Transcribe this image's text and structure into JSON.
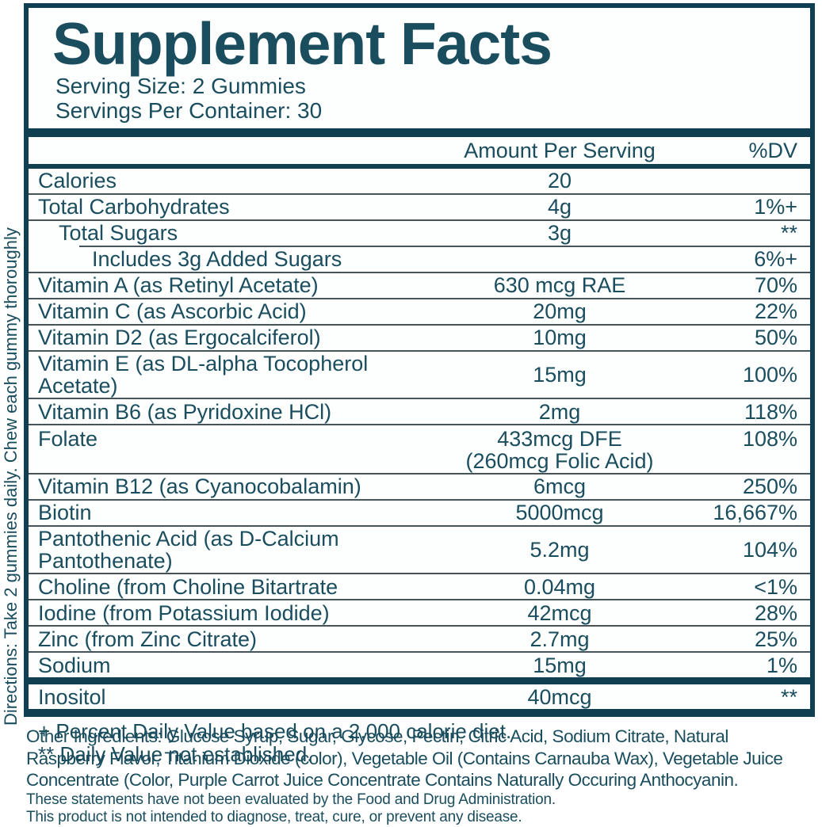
{
  "colors": {
    "text_teal": "#1A4D5E",
    "bar_teal": "#0F3F50",
    "separator_gray": "#46545A",
    "background": "#FFFFFF"
  },
  "directions_sidebar": "Directions: Take 2 gummies daily. Chew each gummy thoroughly",
  "header": {
    "title": "Supplement Facts",
    "serving_size": "Serving Size: 2 Gummies",
    "servings_per_container": "Servings Per Container: 30"
  },
  "table": {
    "amount_header": "Amount Per Serving",
    "dv_header": "%DV",
    "rows": [
      {
        "name": "Calories",
        "amount": "20",
        "amount2": "",
        "dv": "",
        "indent": 0,
        "divider": "none"
      },
      {
        "name": "Total Carbohydrates",
        "amount": "4g",
        "amount2": "",
        "dv": "1%+",
        "indent": 0,
        "divider": "full"
      },
      {
        "name": "Total Sugars",
        "amount": "3g",
        "amount2": "",
        "dv": "**",
        "indent": 1,
        "divider": "full"
      },
      {
        "name": "Includes 3g Added Sugars",
        "amount": "",
        "amount2": "",
        "dv": "6%+",
        "indent": 2,
        "divider": "indent"
      },
      {
        "name": "Vitamin A (as Retinyl Acetate)",
        "amount": "630 mcg RAE",
        "amount2": "",
        "dv": "70%",
        "indent": 0,
        "divider": "full"
      },
      {
        "name": "Vitamin C (as Ascorbic Acid)",
        "amount": "20mg",
        "amount2": "",
        "dv": "22%",
        "indent": 0,
        "divider": "full"
      },
      {
        "name": "Vitamin D2 (as Ergocalciferol)",
        "amount": "10mg",
        "amount2": "",
        "dv": "50%",
        "indent": 0,
        "divider": "full"
      },
      {
        "name": "Vitamin E (as DL-alpha Tocopherol Acetate)",
        "amount": "15mg",
        "amount2": "",
        "dv": "100%",
        "indent": 0,
        "divider": "full"
      },
      {
        "name": "Vitamin B6 (as Pyridoxine HCl)",
        "amount": "2mg",
        "amount2": "",
        "dv": "118%",
        "indent": 0,
        "divider": "full"
      },
      {
        "name": "Folate",
        "amount": "433mcg DFE",
        "amount2": "(260mcg Folic Acid)",
        "dv": "108%",
        "indent": 0,
        "divider": "full"
      },
      {
        "name": "Vitamin B12 (as Cyanocobalamin)",
        "amount": "6mcg",
        "amount2": "",
        "dv": "250%",
        "indent": 0,
        "divider": "full"
      },
      {
        "name": "Biotin",
        "amount": "5000mcg",
        "amount2": "",
        "dv": "16,667%",
        "indent": 0,
        "divider": "full"
      },
      {
        "name": "Pantothenic Acid (as D-Calcium Pantothenate)",
        "amount": "5.2mg",
        "amount2": "",
        "dv": "104%",
        "indent": 0,
        "divider": "full"
      },
      {
        "name": "Choline (from Choline Bitartrate",
        "amount": "0.04mg",
        "amount2": "",
        "dv": "<1%",
        "indent": 0,
        "divider": "full"
      },
      {
        "name": "Iodine (from Potassium Iodide)",
        "amount": "42mcg",
        "amount2": "",
        "dv": "28%",
        "indent": 0,
        "divider": "full"
      },
      {
        "name": "Zinc (from Zinc Citrate)",
        "amount": "2.7mg",
        "amount2": "",
        "dv": "25%",
        "indent": 0,
        "divider": "full"
      },
      {
        "name": "Sodium",
        "amount": "15mg",
        "amount2": "",
        "dv": "1%",
        "indent": 0,
        "divider": "full"
      }
    ],
    "inositol_row": {
      "name": "Inositol",
      "amount": "40mcg",
      "dv": "**"
    },
    "footnotes": [
      "+ Percent Daily Value based on a 2,000 calorie diet.",
      "** Daily Value not established."
    ]
  },
  "other_ingredients": {
    "lines": [
      "Other Ingredients: Glucose Syrup, Sugar, Glycose, Pectin, Citric Acid, Sodium Citrate, Natural",
      "Raspberry Flavor, Titanium Dioxide (color), Vegetable Oil (Contains Carnauba Wax), Vegetable Juice",
      "Concentrate (Color, Purple Carrot Juice Concentrate Contains Naturally Occuring Anthocyanin."
    ]
  },
  "disclaimers": [
    "These statements have not been evaluated by the Food and Drug Administration.",
    "This product is not intended to diagnose, treat, cure, or prevent any disease."
  ]
}
